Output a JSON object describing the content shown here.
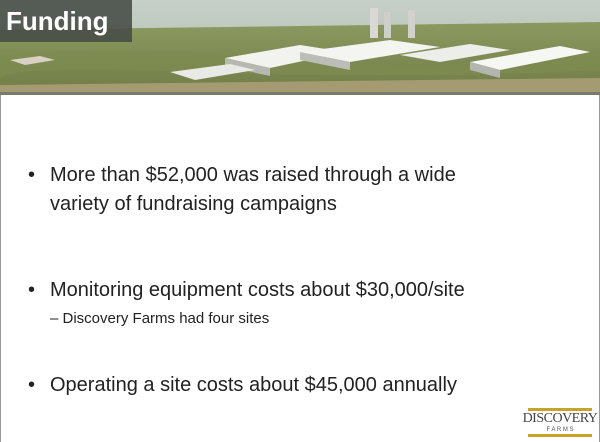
{
  "slide": {
    "title": "Funding",
    "bullets": [
      {
        "text": "More than $52,000 was raised through a wide variety of fundraising campaigns"
      },
      {
        "text": "Monitoring equipment costs about $30,000/site",
        "sub": [
          "Discovery Farms had four sites"
        ]
      },
      {
        "text": "Operating a site costs about $45,000 annually"
      }
    ],
    "logo": {
      "name": "DISCOVERY",
      "sub": "F A R M S"
    }
  }
}
